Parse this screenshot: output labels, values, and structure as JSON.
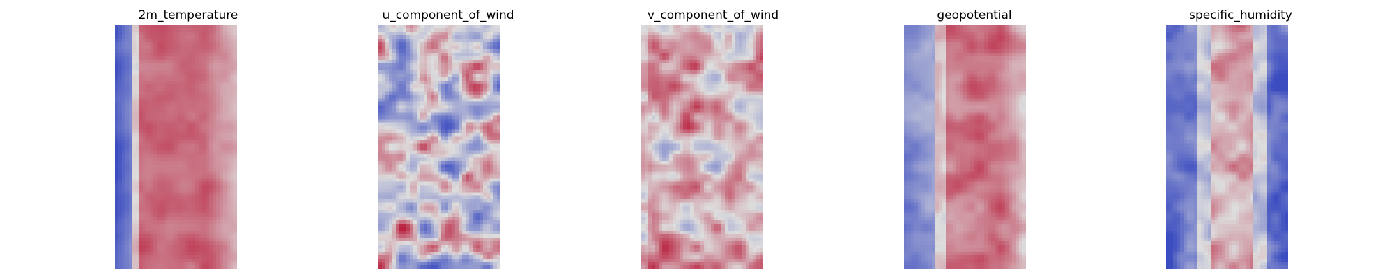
{
  "chart_data": [
    {
      "type": "heatmap",
      "title": "2m_temperature",
      "colormap": "coolwarm",
      "grid": false,
      "axes_visible": false
    },
    {
      "type": "heatmap",
      "title": "u_component_of_wind",
      "colormap": "coolwarm",
      "grid": false,
      "axes_visible": false
    },
    {
      "type": "heatmap",
      "title": "v_component_of_wind",
      "colormap": "coolwarm",
      "grid": false,
      "axes_visible": false
    },
    {
      "type": "heatmap",
      "title": "geopotential",
      "colormap": "coolwarm",
      "grid": false,
      "axes_visible": false
    },
    {
      "type": "heatmap",
      "title": "specific_humidity",
      "colormap": "coolwarm",
      "grid": false,
      "axes_visible": false
    }
  ],
  "colors": {
    "coolwarm_low": "#3b4cc0",
    "coolwarm_mid": "#dddddd",
    "coolwarm_high": "#b40426"
  }
}
